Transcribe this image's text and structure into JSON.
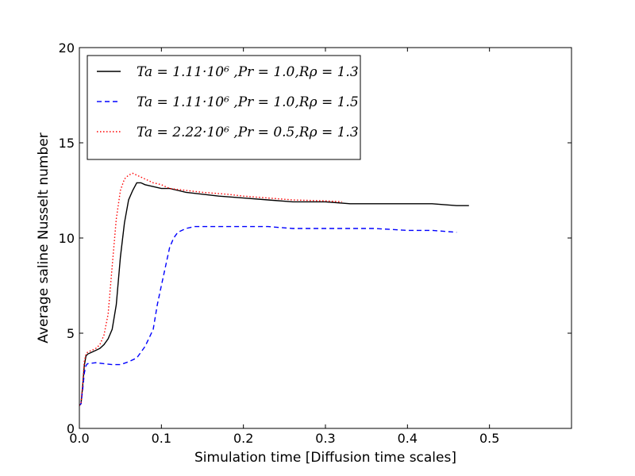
{
  "chart_data": {
    "type": "line",
    "title": "",
    "xlabel": "Simulation time [Diffusion time scales]",
    "ylabel": "Average saline Nusselt number",
    "xlim": [
      0.0,
      0.6
    ],
    "ylim": [
      0,
      20
    ],
    "xticks": [
      0.0,
      0.1,
      0.2,
      0.3,
      0.4,
      0.5
    ],
    "xtick_labels": [
      "0.0",
      "0.1",
      "0.2",
      "0.3",
      "0.4",
      "0.5"
    ],
    "yticks": [
      0,
      5,
      10,
      15,
      20
    ],
    "ytick_labels": [
      "0",
      "5",
      "10",
      "15",
      "20"
    ],
    "grid": false,
    "legend_position": "top-left",
    "series": [
      {
        "name": "Ta=1.11·10^6 ,Pr=1.0,R_ρ=1.3",
        "legend_label": "Ta = 1.11·10⁶ ,Pr = 1.0,Rρ = 1.3",
        "color": "#000000",
        "style": "solid",
        "x": [
          0.0,
          0.002,
          0.004,
          0.006,
          0.008,
          0.01,
          0.015,
          0.02,
          0.025,
          0.03,
          0.035,
          0.04,
          0.045,
          0.05,
          0.055,
          0.06,
          0.065,
          0.07,
          0.075,
          0.08,
          0.09,
          0.1,
          0.11,
          0.12,
          0.13,
          0.15,
          0.17,
          0.2,
          0.23,
          0.26,
          0.3,
          0.33,
          0.36,
          0.4,
          0.43,
          0.46,
          0.475
        ],
        "y": [
          1.2,
          1.3,
          2.2,
          3.3,
          3.8,
          3.9,
          4.0,
          4.1,
          4.2,
          4.4,
          4.7,
          5.2,
          6.5,
          9.0,
          10.8,
          12.0,
          12.5,
          12.9,
          12.9,
          12.8,
          12.7,
          12.6,
          12.6,
          12.5,
          12.4,
          12.3,
          12.2,
          12.1,
          12.0,
          11.9,
          11.9,
          11.8,
          11.8,
          11.8,
          11.8,
          11.7,
          11.7
        ]
      },
      {
        "name": "Ta=1.11·10^6 ,Pr=1.0,R_ρ=1.5",
        "legend_label": "Ta = 1.11·10⁶ ,Pr = 1.0,Rρ = 1.5",
        "color": "#0000ff",
        "style": "dashed",
        "x": [
          0.0,
          0.002,
          0.004,
          0.006,
          0.008,
          0.01,
          0.02,
          0.03,
          0.04,
          0.05,
          0.06,
          0.07,
          0.08,
          0.09,
          0.095,
          0.1,
          0.105,
          0.11,
          0.115,
          0.12,
          0.13,
          0.14,
          0.15,
          0.17,
          0.2,
          0.23,
          0.26,
          0.3,
          0.33,
          0.36,
          0.4,
          0.43,
          0.46
        ],
        "y": [
          1.2,
          1.3,
          2.0,
          2.9,
          3.3,
          3.4,
          3.45,
          3.4,
          3.35,
          3.35,
          3.5,
          3.7,
          4.3,
          5.2,
          6.5,
          7.5,
          8.5,
          9.5,
          10.0,
          10.3,
          10.5,
          10.6,
          10.6,
          10.6,
          10.6,
          10.6,
          10.5,
          10.5,
          10.5,
          10.5,
          10.4,
          10.4,
          10.3
        ]
      },
      {
        "name": "Ta=2.22·10^6 ,Pr=0.5,R_ρ=1.3",
        "legend_label": "Ta = 2.22·10⁶ ,Pr = 0.5,Rρ = 1.3",
        "color": "#ff0000",
        "style": "dotted",
        "x": [
          0.0,
          0.002,
          0.004,
          0.006,
          0.008,
          0.01,
          0.015,
          0.02,
          0.025,
          0.03,
          0.035,
          0.04,
          0.045,
          0.05,
          0.055,
          0.06,
          0.065,
          0.07,
          0.08,
          0.09,
          0.1,
          0.11,
          0.13,
          0.15,
          0.18,
          0.2,
          0.23,
          0.26,
          0.3,
          0.32
        ],
        "y": [
          1.2,
          1.3,
          2.3,
          3.5,
          3.9,
          4.0,
          4.1,
          4.2,
          4.4,
          4.9,
          6.0,
          8.5,
          11.0,
          12.5,
          13.1,
          13.3,
          13.4,
          13.3,
          13.1,
          12.9,
          12.8,
          12.6,
          12.5,
          12.4,
          12.3,
          12.2,
          12.1,
          12.0,
          11.95,
          11.9
        ]
      }
    ]
  }
}
